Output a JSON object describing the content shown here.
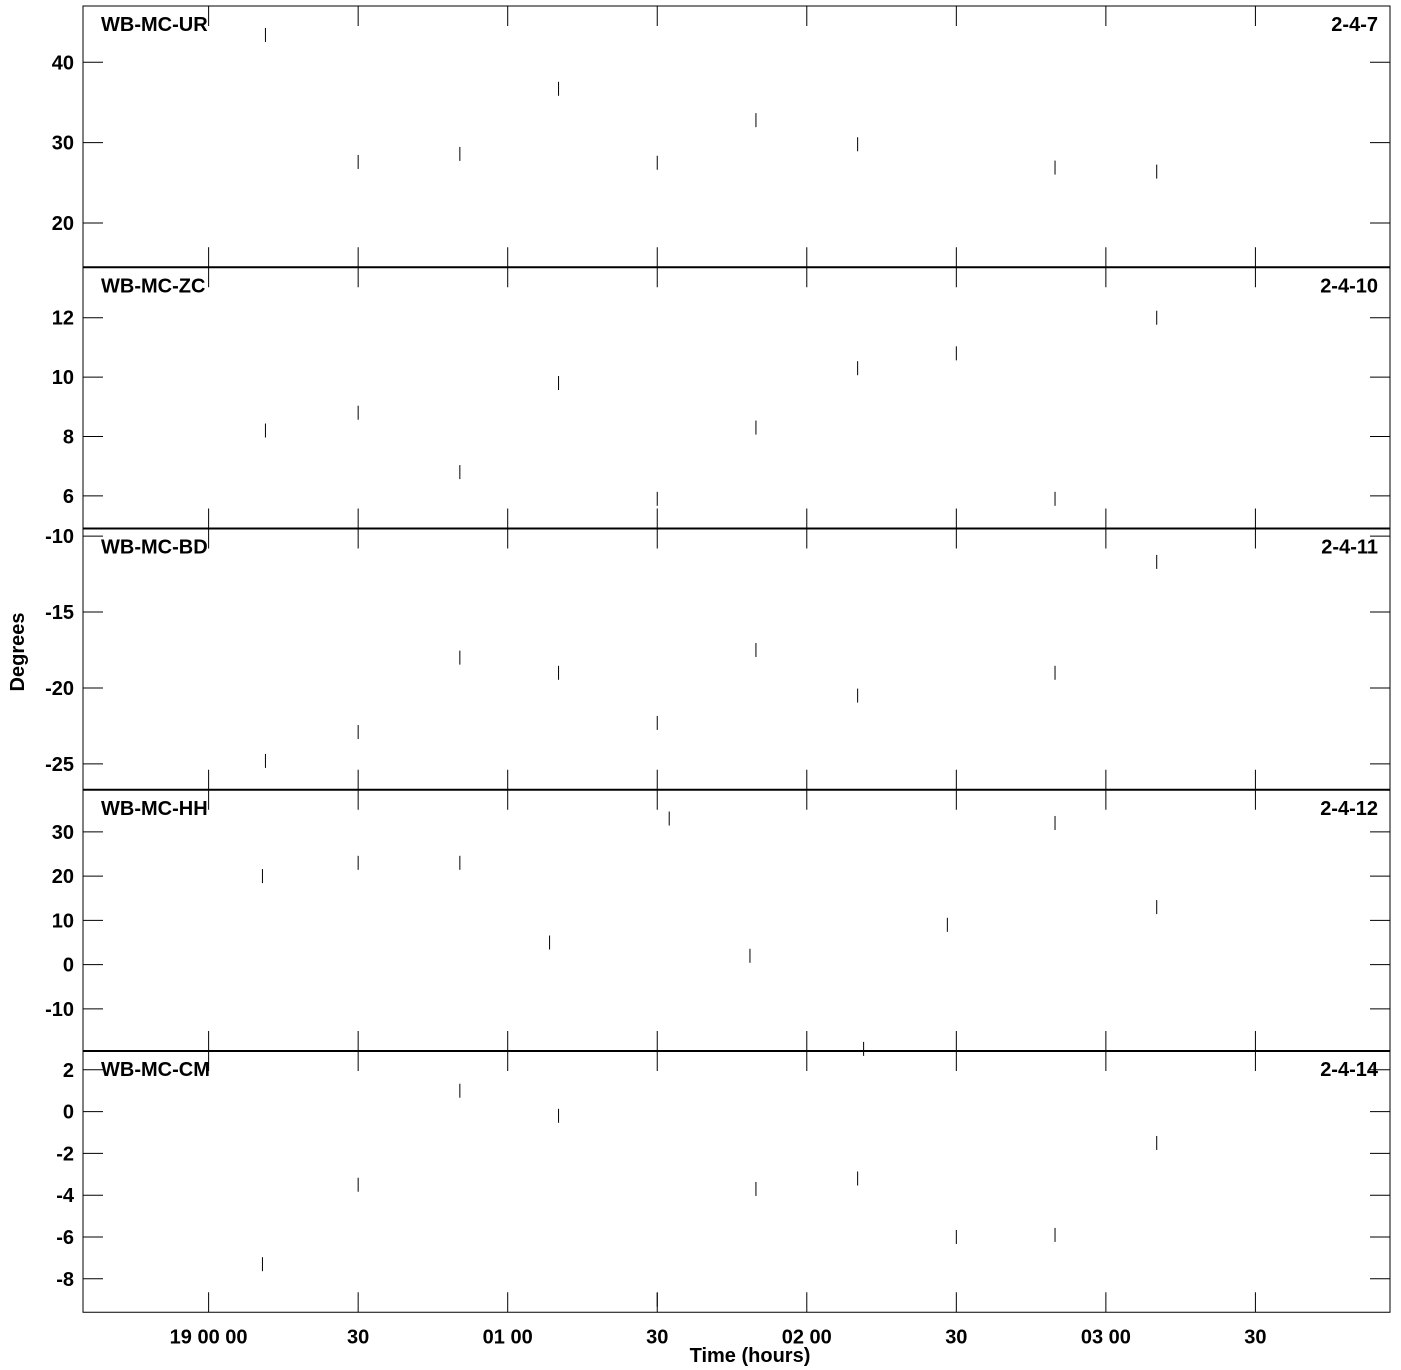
{
  "chart_data": {
    "type": "scatter",
    "ylabel": "Degrees",
    "xlabel": "Time (hours)",
    "x_unit": "hours",
    "xlim": [
      -0.42,
      3.95
    ],
    "x_ticks": [
      {
        "value": 0.0,
        "label": "19 00 00"
      },
      {
        "value": 0.5,
        "label": "30"
      },
      {
        "value": 1.0,
        "label": "01 00"
      },
      {
        "value": 1.5,
        "label": "30"
      },
      {
        "value": 2.0,
        "label": "02 00"
      },
      {
        "value": 2.5,
        "label": "30"
      },
      {
        "value": 3.0,
        "label": "03 00"
      },
      {
        "value": 3.5,
        "label": "30"
      }
    ],
    "panels": [
      {
        "name": "WB-MC-UR",
        "code": "2-4-7",
        "ylim": [
          14.5,
          47.0
        ],
        "yticks": [
          20,
          30,
          40
        ],
        "points": [
          {
            "x": 0.19,
            "y": 43.4
          },
          {
            "x": 0.5,
            "y": 27.6
          },
          {
            "x": 0.84,
            "y": 28.6
          },
          {
            "x": 1.17,
            "y": 36.7
          },
          {
            "x": 1.5,
            "y": 27.5
          },
          {
            "x": 1.83,
            "y": 32.8
          },
          {
            "x": 2.17,
            "y": 29.8
          },
          {
            "x": 2.83,
            "y": 26.9
          },
          {
            "x": 3.17,
            "y": 26.4
          }
        ]
      },
      {
        "name": "WB-MC-ZC",
        "code": "2-4-10",
        "ylim": [
          4.9,
          13.7
        ],
        "yticks": [
          6,
          8,
          10,
          12
        ],
        "points": [
          {
            "x": 0.19,
            "y": 8.2
          },
          {
            "x": 0.5,
            "y": 8.8
          },
          {
            "x": 0.84,
            "y": 6.8
          },
          {
            "x": 1.17,
            "y": 9.8
          },
          {
            "x": 1.5,
            "y": 5.9
          },
          {
            "x": 1.83,
            "y": 8.3
          },
          {
            "x": 2.17,
            "y": 10.3
          },
          {
            "x": 2.5,
            "y": 10.8
          },
          {
            "x": 2.83,
            "y": 5.9
          },
          {
            "x": 3.17,
            "y": 12.0
          }
        ]
      },
      {
        "name": "WB-MC-BD",
        "code": "2-4-11",
        "ylim": [
          -26.7,
          -9.5
        ],
        "yticks": [
          -25,
          -20,
          -15,
          -10
        ],
        "points": [
          {
            "x": 0.19,
            "y": -24.8
          },
          {
            "x": 0.5,
            "y": -22.9
          },
          {
            "x": 0.84,
            "y": -18.0
          },
          {
            "x": 1.17,
            "y": -19.0
          },
          {
            "x": 1.5,
            "y": -22.3
          },
          {
            "x": 1.83,
            "y": -17.5
          },
          {
            "x": 2.17,
            "y": -20.5
          },
          {
            "x": 2.83,
            "y": -19.0
          },
          {
            "x": 3.17,
            "y": -11.7
          }
        ]
      },
      {
        "name": "WB-MC-HH",
        "code": "2-4-12",
        "ylim": [
          -19.5,
          39.5
        ],
        "yticks": [
          -10,
          0,
          10,
          20,
          30
        ],
        "points": [
          {
            "x": 0.18,
            "y": 20.0
          },
          {
            "x": 0.5,
            "y": 23.0
          },
          {
            "x": 0.84,
            "y": 23.0
          },
          {
            "x": 1.14,
            "y": 5.0
          },
          {
            "x": 1.54,
            "y": 33.0
          },
          {
            "x": 1.81,
            "y": 2.0
          },
          {
            "x": 2.47,
            "y": 9.0
          },
          {
            "x": 2.83,
            "y": 32.0
          },
          {
            "x": 3.17,
            "y": 13.0
          }
        ]
      },
      {
        "name": "WB-MC-CM",
        "code": "2-4-14",
        "ylim": [
          -9.6,
          2.9
        ],
        "yticks": [
          -8,
          -6,
          -4,
          -2,
          0,
          2
        ],
        "points": [
          {
            "x": 0.18,
            "y": -7.3
          },
          {
            "x": 0.5,
            "y": -3.5
          },
          {
            "x": 0.84,
            "y": 1.0
          },
          {
            "x": 1.17,
            "y": -0.2
          },
          {
            "x": 1.5,
            "y": -9.0
          },
          {
            "x": 1.83,
            "y": -3.7
          },
          {
            "x": 2.19,
            "y": 3.0
          },
          {
            "x": 2.17,
            "y": -3.2
          },
          {
            "x": 2.5,
            "y": -6.0
          },
          {
            "x": 2.83,
            "y": -5.9
          },
          {
            "x": 3.17,
            "y": -1.5
          }
        ]
      }
    ]
  }
}
